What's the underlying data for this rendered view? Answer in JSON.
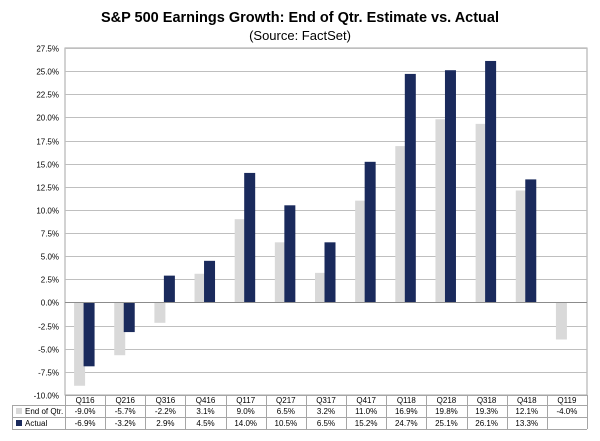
{
  "chart_data": {
    "type": "bar",
    "title": "S&P 500 Earnings Growth: End of Qtr. Estimate vs. Actual",
    "subtitle": "(Source: FactSet)",
    "categories": [
      "Q116",
      "Q216",
      "Q316",
      "Q416",
      "Q117",
      "Q217",
      "Q317",
      "Q417",
      "Q118",
      "Q218",
      "Q318",
      "Q418",
      "Q119"
    ],
    "series": [
      {
        "name": "End of Qtr.",
        "color": "#d9d9d9",
        "values": [
          -9.0,
          -5.7,
          -2.2,
          3.1,
          9.0,
          6.5,
          3.2,
          11.0,
          16.9,
          19.8,
          19.3,
          12.1,
          -4.0
        ],
        "labels": [
          "-9.0%",
          "-5.7%",
          "-2.2%",
          "3.1%",
          "9.0%",
          "6.5%",
          "3.2%",
          "11.0%",
          "16.9%",
          "19.8%",
          "19.3%",
          "12.1%",
          "-4.0%"
        ]
      },
      {
        "name": "Actual",
        "color": "#1a2a5c",
        "values": [
          -6.9,
          -3.2,
          2.9,
          4.5,
          14.0,
          10.5,
          6.5,
          15.2,
          24.7,
          25.1,
          26.1,
          13.3,
          null
        ],
        "labels": [
          "-6.9%",
          "-3.2%",
          "2.9%",
          "4.5%",
          "14.0%",
          "10.5%",
          "6.5%",
          "15.2%",
          "24.7%",
          "25.1%",
          "26.1%",
          "13.3%",
          ""
        ]
      }
    ],
    "ylim": [
      -10.0,
      27.5
    ],
    "yticks": [
      -10.0,
      -7.5,
      -5.0,
      -2.5,
      0.0,
      2.5,
      5.0,
      7.5,
      10.0,
      12.5,
      15.0,
      17.5,
      20.0,
      22.5,
      25.0,
      27.5
    ],
    "ytick_labels": [
      "-10.0%",
      "-7.5%",
      "-5.0%",
      "-2.5%",
      "0.0%",
      "2.5%",
      "5.0%",
      "7.5%",
      "10.0%",
      "12.5%",
      "15.0%",
      "17.5%",
      "20.0%",
      "22.5%",
      "25.0%",
      "27.5%"
    ],
    "grid": true,
    "legend": "data-table-below"
  }
}
